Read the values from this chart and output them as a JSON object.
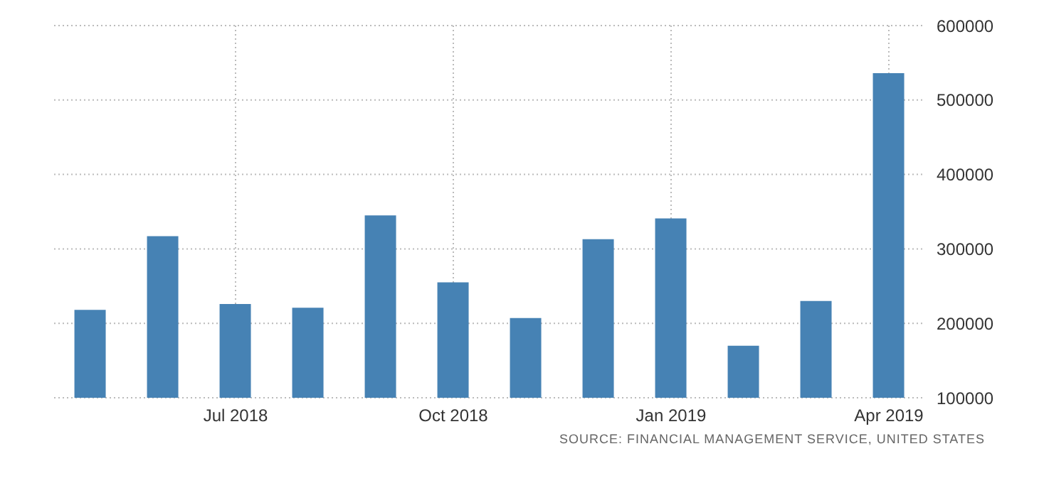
{
  "chart_data": {
    "type": "bar",
    "categories": [
      null,
      null,
      "Jul 2018",
      null,
      null,
      "Oct 2018",
      null,
      null,
      "Jan 2019",
      null,
      null,
      "Apr 2019"
    ],
    "values": [
      218000,
      317000,
      226000,
      221000,
      345000,
      255000,
      207000,
      313000,
      341000,
      170000,
      230000,
      536000
    ],
    "color": "#4682b4",
    "ylim": [
      100000,
      600000
    ],
    "yticks": [
      100000,
      200000,
      300000,
      400000,
      500000,
      600000
    ],
    "grid": true,
    "annotations": [
      "SOURCE: FINANCIAL MANAGEMENT SERVICE, UNITED STATES"
    ]
  }
}
